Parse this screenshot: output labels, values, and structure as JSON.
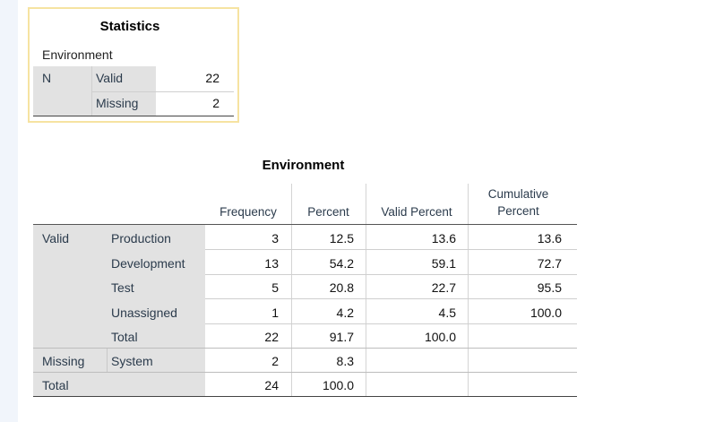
{
  "statistics": {
    "title": "Statistics",
    "variable": "Environment",
    "n_label": "N",
    "rows": [
      {
        "label": "Valid",
        "value": "22"
      },
      {
        "label": "Missing",
        "value": "2"
      }
    ]
  },
  "frequency": {
    "title": "Environment",
    "headers": {
      "frequency": "Frequency",
      "percent": "Percent",
      "valid_percent": "Valid Percent",
      "cumulative_line1": "Cumulative",
      "cumulative_line2": "Percent"
    },
    "group_valid": "Valid",
    "group_missing": "Missing",
    "group_total": "Total",
    "rows": [
      {
        "label": "Production",
        "frequency": "3",
        "percent": "12.5",
        "valid_percent": "13.6",
        "cumulative": "13.6"
      },
      {
        "label": "Development",
        "frequency": "13",
        "percent": "54.2",
        "valid_percent": "59.1",
        "cumulative": "72.7"
      },
      {
        "label": "Test",
        "frequency": "5",
        "percent": "20.8",
        "valid_percent": "22.7",
        "cumulative": "95.5"
      },
      {
        "label": "Unassigned",
        "frequency": "1",
        "percent": "4.2",
        "valid_percent": "4.5",
        "cumulative": "100.0"
      },
      {
        "label": "Total",
        "frequency": "22",
        "percent": "91.7",
        "valid_percent": "100.0",
        "cumulative": ""
      },
      {
        "label": "System",
        "frequency": "2",
        "percent": "8.3",
        "valid_percent": "",
        "cumulative": ""
      },
      {
        "label": "",
        "frequency": "24",
        "percent": "100.0",
        "valid_percent": "",
        "cumulative": ""
      }
    ]
  }
}
